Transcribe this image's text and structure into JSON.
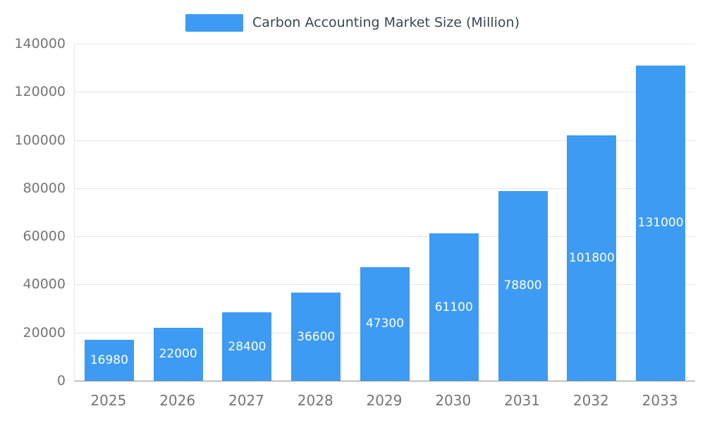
{
  "chart_data": {
    "type": "bar",
    "title": "Carbon Accounting Market Size (Million)",
    "categories": [
      "2025",
      "2026",
      "2027",
      "2028",
      "2029",
      "2030",
      "2031",
      "2032",
      "2033"
    ],
    "values": [
      16980,
      22000,
      28400,
      36600,
      47300,
      61100,
      78800,
      101800,
      131000
    ],
    "bar_value_labels": [
      "16980",
      "22000",
      "28400",
      "36600",
      "47300",
      "61100",
      "78800",
      "101800",
      "131000"
    ],
    "xlabel": "",
    "ylabel": "",
    "ylim": [
      0,
      140000
    ],
    "yticks": [
      0,
      20000,
      40000,
      60000,
      80000,
      100000,
      120000,
      140000
    ],
    "grid": true,
    "legend_position": "top-center",
    "colors": {
      "bar": "#3d9bf3",
      "bar_label_text": "#ffffff",
      "title_text": "#37474f",
      "axis_text": "#757575",
      "gridline": "#e6e6e6",
      "axis_line": "#8c8c8c"
    }
  }
}
